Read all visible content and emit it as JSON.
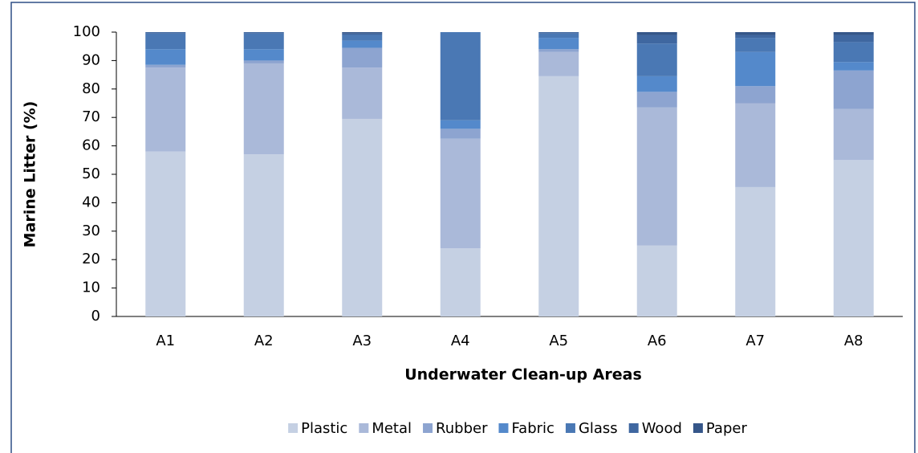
{
  "chart_data": {
    "type": "stacked_bar",
    "xlabel": "Underwater Clean-up Areas",
    "ylabel": "Marine Litter (%)",
    "categories": [
      "A1",
      "A2",
      "A3",
      "A4",
      "A5",
      "A6",
      "A7",
      "A8"
    ],
    "series": [
      {
        "name": "Plastic",
        "color": "#c5d0e3",
        "values": [
          58,
          57,
          69.5,
          24,
          84.5,
          25,
          45.5,
          55
        ]
      },
      {
        "name": "Metal",
        "color": "#aab9d9",
        "values": [
          29.5,
          32,
          18,
          38.5,
          8.5,
          48.5,
          29.5,
          18
        ]
      },
      {
        "name": "Rubber",
        "color": "#8da4d0",
        "values": [
          1,
          1,
          7,
          3.5,
          1,
          5.5,
          6,
          13.5
        ]
      },
      {
        "name": "Fabric",
        "color": "#5489cb",
        "values": [
          5.5,
          4,
          2.5,
          3,
          4,
          5.5,
          12,
          3
        ]
      },
      {
        "name": "Glass",
        "color": "#4a78b4",
        "values": [
          5.5,
          5.5,
          2,
          31,
          1.5,
          11.5,
          5,
          7
        ]
      },
      {
        "name": "Wood",
        "color": "#3f67a0",
        "values": [
          0.5,
          0.5,
          0.5,
          0,
          0.5,
          3,
          1,
          2.5
        ]
      },
      {
        "name": "Paper",
        "color": "#355689",
        "values": [
          0,
          0,
          0.5,
          0,
          0,
          1,
          1,
          1
        ]
      }
    ],
    "ylim": [
      0,
      100
    ],
    "yticks": [
      0,
      10,
      20,
      30,
      40,
      50,
      60,
      70,
      80,
      90,
      100
    ],
    "legend": "bottom"
  }
}
